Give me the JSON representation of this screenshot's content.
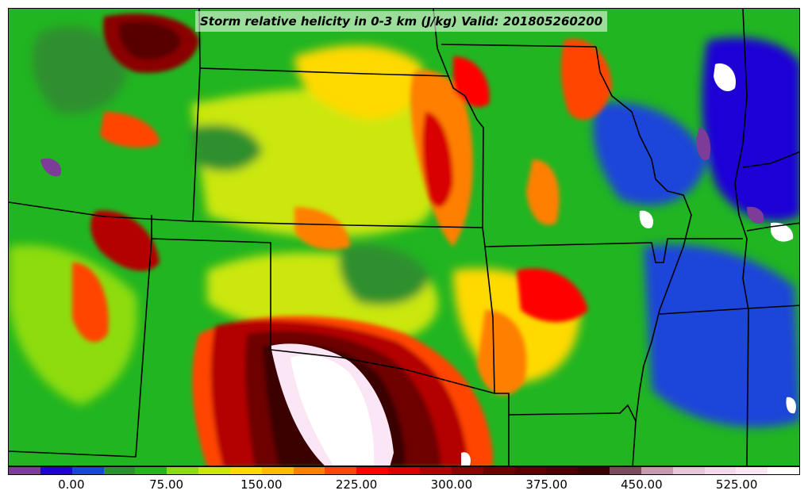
{
  "title": "Storm relative helicity in 0-3 km (J/kg) Valid: 201805260200",
  "colorbar": {
    "colors": [
      "#7d3c98",
      "#1f00d6",
      "#1a45d9",
      "#2f8f2f",
      "#21b521",
      "#8ddc10",
      "#cbe70c",
      "#ffd900",
      "#ffbb00",
      "#ff7f00",
      "#ff4500",
      "#ff0000",
      "#d80000",
      "#b30000",
      "#8b0000",
      "#6e0000",
      "#580000",
      "#4b0000",
      "#3a0000",
      "#7b4a5e",
      "#c79ab4",
      "#e7c6dc",
      "#f5d8ee",
      "#fbe6f6",
      "#ffffff"
    ],
    "ticks": [
      "0.00",
      "75.00",
      "150.00",
      "225.00",
      "300.00",
      "375.00",
      "450.00",
      "525.00"
    ],
    "range": [
      -50,
      575
    ]
  }
}
